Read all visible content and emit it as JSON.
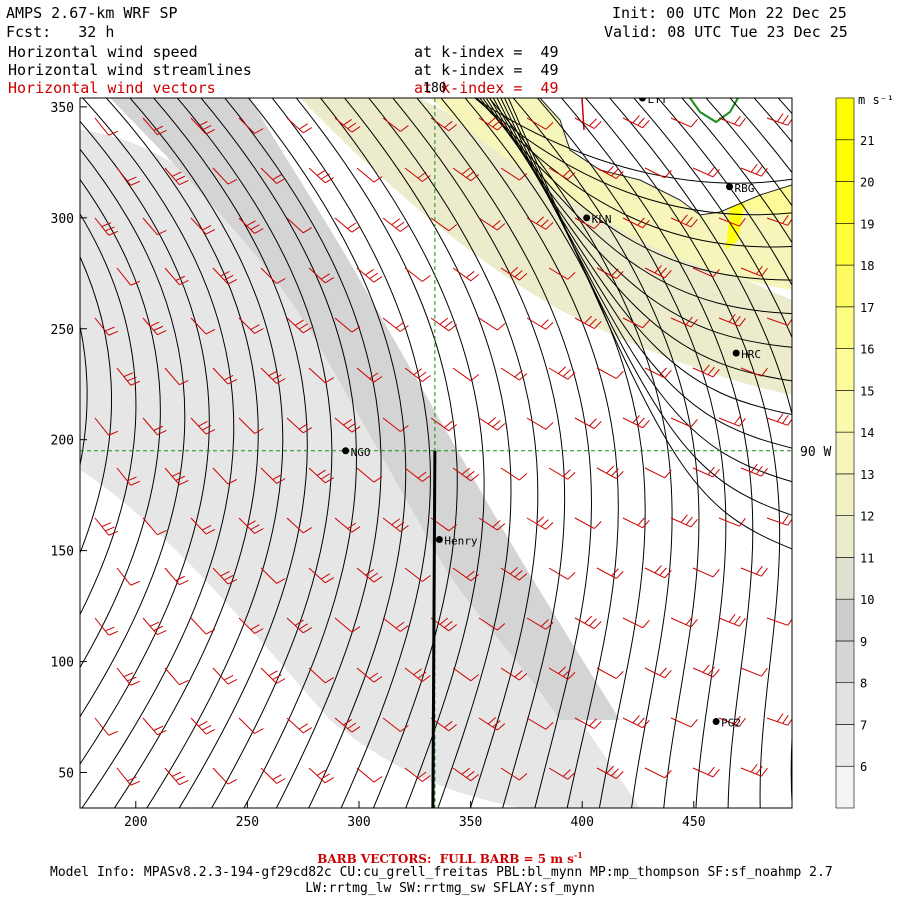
{
  "header": {
    "title": "AMPS 2.67-km WRF SP",
    "forecast": "Fcst:   32 h",
    "init": "Init: 00 UTC Mon 22 Dec 25",
    "valid": "Valid: 08 UTC Tue 23 Dec 25"
  },
  "fields": [
    {
      "name": "Horizontal wind speed",
      "level": "at k-index =  49"
    },
    {
      "name": "Horizontal wind streamlines",
      "level": "at k-index =  49"
    },
    {
      "name": "Horizontal wind vectors",
      "level": "at k-index =  49"
    }
  ],
  "axes": {
    "x_ticks": [
      200,
      250,
      300,
      350,
      400,
      450
    ],
    "y_ticks": [
      50,
      100,
      150,
      200,
      250,
      300,
      350
    ],
    "xlim": [
      175,
      494
    ],
    "ylim": [
      34,
      354
    ],
    "meridian_label": "180",
    "parallel_label": "90 W",
    "meridian_x": 334,
    "parallel_y": 195
  },
  "colorbar": {
    "unit": "m s⁻¹",
    "levels": [
      6,
      7,
      8,
      9,
      10,
      11,
      12,
      13,
      14,
      15,
      16,
      17,
      18,
      19,
      20,
      21
    ],
    "colors": [
      "#f4f4f4",
      "#ebebeb",
      "#e1e1e1",
      "#d6d6d6",
      "#cdcdcd",
      "#e0e0d0",
      "#ecebcc",
      "#f2f1c4",
      "#f7f6ba",
      "#faf9ac",
      "#fcfb98",
      "#fdfc82",
      "#fefb60",
      "#ffff3c",
      "#ffff14",
      "#ffff00"
    ]
  },
  "stations": [
    {
      "label": "LYT",
      "x": 427,
      "y": 354
    },
    {
      "label": "RBG",
      "x": 466,
      "y": 314
    },
    {
      "label": "KLN",
      "x": 402,
      "y": 300
    },
    {
      "label": "HRC",
      "x": 469,
      "y": 239
    },
    {
      "label": "NGO",
      "x": 294,
      "y": 195
    },
    {
      "label": "Henry",
      "x": 336,
      "y": 155
    },
    {
      "label": "PG2",
      "x": 460,
      "y": 73
    }
  ],
  "footer": {
    "barb": "BARB VECTORS:  FULL BARB = 5 m s",
    "barb_sup": "-1",
    "model_info": "Model Info: MPASv8.2.3-194-gf29cd82c CU:cu_grell_freitas PBL:bl_mynn MP:mp_thompson SF:sf_noahmp 2.7",
    "model_info2": "LW:rrtmg_lw SW:rrtmg_sw SFLAY:sf_mynn"
  }
}
